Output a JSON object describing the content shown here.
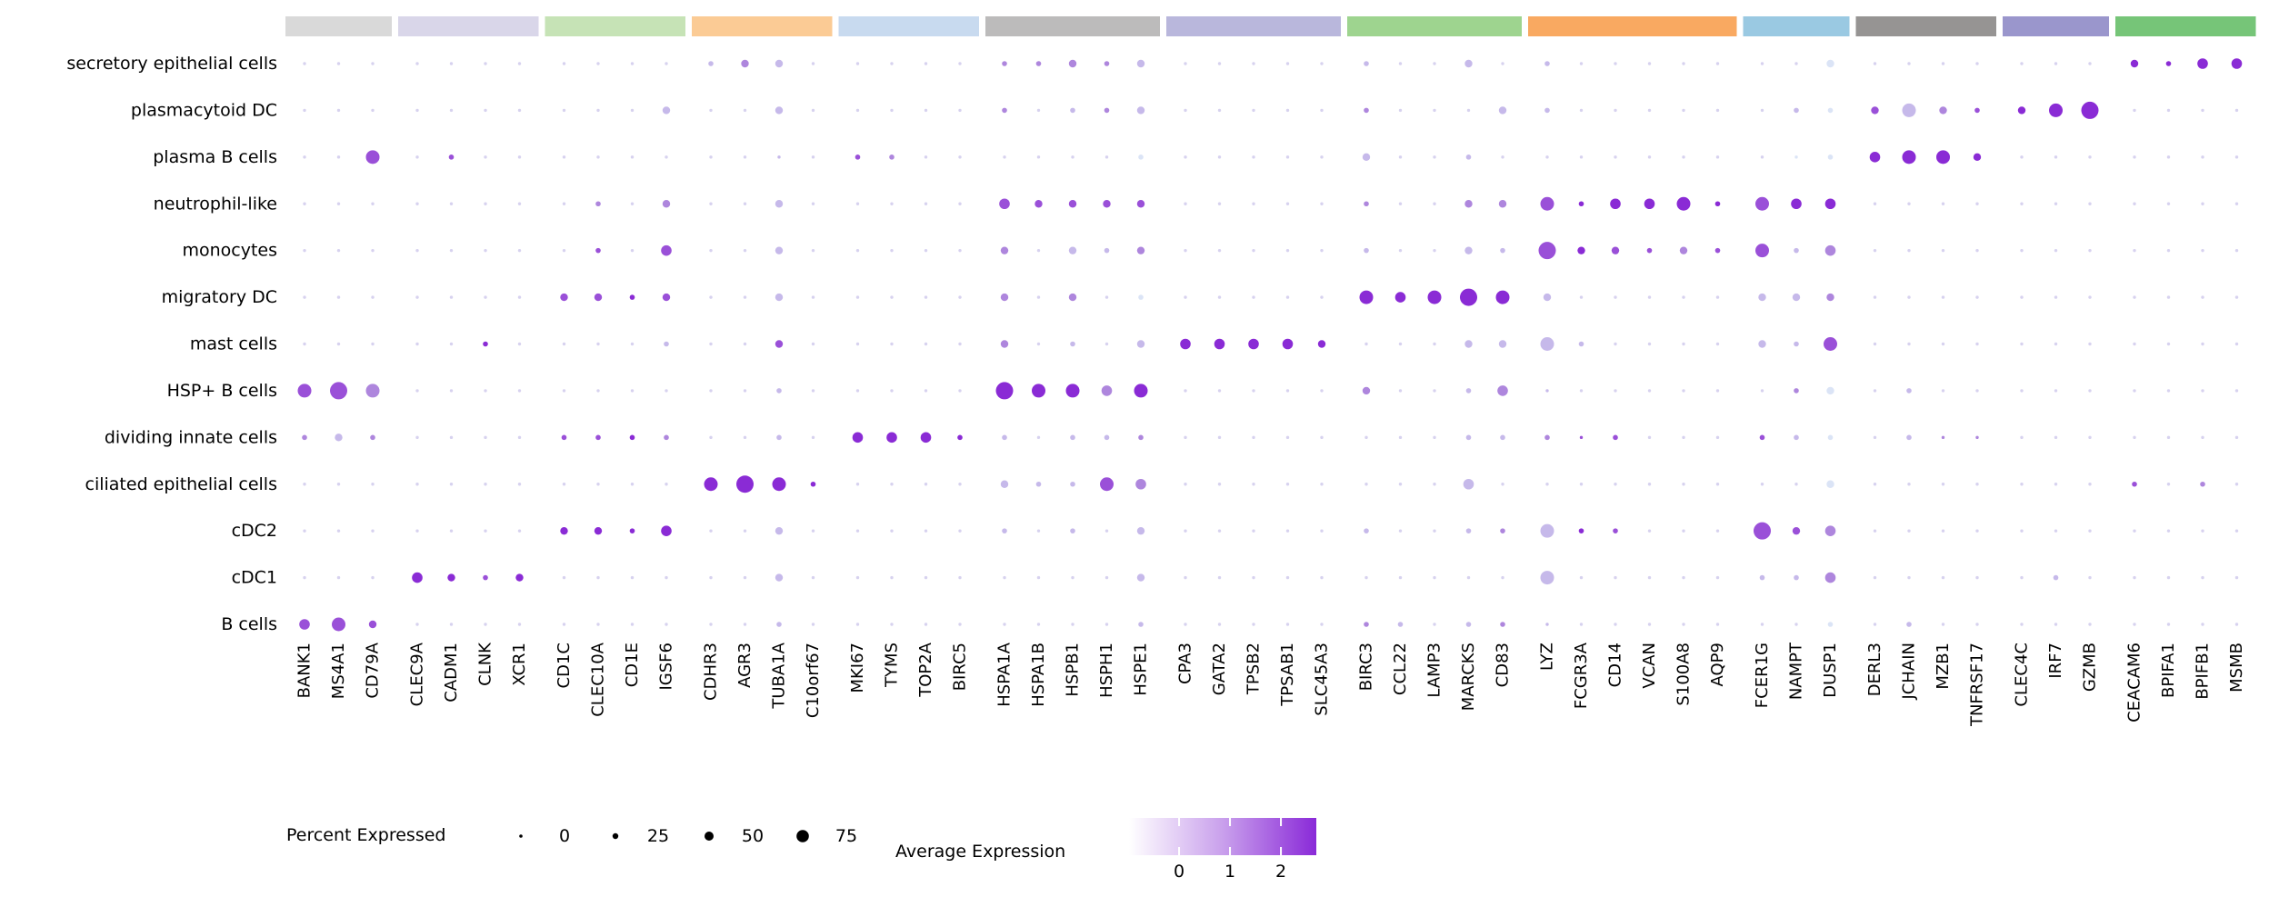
{
  "figure": {
    "background": "#ffffff",
    "text_color": "#000000"
  },
  "legend": {
    "size": {
      "title": "Percent Expressed",
      "items": [
        {
          "label": "0",
          "radius": 1.8
        },
        {
          "label": "25",
          "radius": 3.2
        },
        {
          "label": "50",
          "radius": 5.0
        },
        {
          "label": "75",
          "radius": 6.8
        }
      ],
      "dot_color": "#000000"
    },
    "color": {
      "title": "Average Expression",
      "ticks": [
        "0",
        "1",
        "2"
      ],
      "gradient": [
        "#ffffff",
        "#c9a0ec",
        "#8a2ad8"
      ]
    }
  },
  "chart_data": {
    "type": "scatter",
    "variant": "dotplot",
    "title": "",
    "xlabel": "",
    "ylabel": "",
    "genes": [
      "BANK1",
      "MS4A1",
      "CD79A",
      "CLEC9A",
      "CADM1",
      "CLNK",
      "XCR1",
      "CD1C",
      "CLEC10A",
      "CD1E",
      "IGSF6",
      "CDHR3",
      "AGR3",
      "TUBA1A",
      "C10orf67",
      "MKI67",
      "TYMS",
      "TOP2A",
      "BIRC5",
      "HSPA1A",
      "HSPA1B",
      "HSPB1",
      "HSPH1",
      "HSPE1",
      "CPA3",
      "GATA2",
      "TPSB2",
      "TPSAB1",
      "SLC45A3",
      "BIRC3",
      "CCL22",
      "LAMP3",
      "MARCKS",
      "CD83",
      "LYZ",
      "FCGR3A",
      "CD14",
      "VCAN",
      "S100A8",
      "AQP9",
      "FCER1G",
      "NAMPT",
      "DUSP1",
      "DERL3",
      "JCHAIN",
      "MZB1",
      "TNFRSF17",
      "CLEC4C",
      "IRF7",
      "GZMB",
      "CEACAM6",
      "BPIFA1",
      "BPIFB1",
      "MSMB"
    ],
    "gene_groups": [
      {
        "count": 3,
        "color": "#d9d9d9"
      },
      {
        "count": 4,
        "color": "#d9d6e9"
      },
      {
        "count": 4,
        "color": "#c6e3b6"
      },
      {
        "count": 4,
        "color": "#fbcb95"
      },
      {
        "count": 4,
        "color": "#c8daef"
      },
      {
        "count": 5,
        "color": "#bcbbbb"
      },
      {
        "count": 5,
        "color": "#b9b7dc"
      },
      {
        "count": 5,
        "color": "#9ed48f"
      },
      {
        "count": 6,
        "color": "#f9a961"
      },
      {
        "count": 3,
        "color": "#9ac9e2"
      },
      {
        "count": 4,
        "color": "#969493"
      },
      {
        "count": 3,
        "color": "#9a96cc"
      },
      {
        "count": 4,
        "color": "#76c578"
      }
    ],
    "cell_types": [
      "secretory epithelial cells",
      "plasmacytoid DC",
      "plasma B cells",
      "neutrophil-like",
      "monocytes",
      "migratory DC",
      "mast cells",
      "HSP+ B cells",
      "dividing innate cells",
      "ciliated epithelial cells",
      "cDC2",
      "cDC1",
      "B cells"
    ],
    "size_levels_radius_px": [
      1.7,
      2.8,
      4.2,
      5.8,
      7.5,
      9.5
    ],
    "size_levels_percent_expressed": [
      3,
      12,
      30,
      55,
      78,
      95
    ],
    "color_levels_hex": [
      "#d7d2ef",
      "#c6b9ea",
      "#ae86dd",
      "#9a50d8",
      "#8a2bd5",
      "#dbe4f6"
    ],
    "color_levels_avg_expression": [
      0.05,
      0.4,
      0.9,
      1.5,
      2.2,
      -0.3
    ],
    "default_dot": "00",
    "rows": [
      {
        "cell_type": "secretory epithelial cells",
        "dots": {
          "11": "11",
          "12": "22",
          "13": "21",
          "19": "12",
          "20": "12",
          "21": "22",
          "22": "12",
          "23": "21",
          "29": "11",
          "32": "21",
          "34": "11",
          "42": "25",
          "50": "24",
          "51": "14",
          "52": "34",
          "53": "34"
        }
      },
      {
        "cell_type": "plasmacytoid DC",
        "dots": {
          "10": "21",
          "13": "21",
          "19": "12",
          "21": "11",
          "22": "12",
          "23": "21",
          "29": "12",
          "33": "21",
          "34": "11",
          "41": "11",
          "42": "15",
          "43": "23",
          "44": "41",
          "45": "22",
          "46": "13",
          "47": "24",
          "48": "44",
          "49": "54"
        }
      },
      {
        "cell_type": "plasma B cells",
        "dots": {
          "2": "43",
          "4": "13",
          "13": "01",
          "15": "13",
          "16": "12",
          "23": "15",
          "29": "21",
          "32": "11",
          "41": "05",
          "42": "15",
          "43": "34",
          "44": "44",
          "45": "44",
          "46": "24"
        }
      },
      {
        "cell_type": "neutrophil-like",
        "dots": {
          "8": "12",
          "10": "22",
          "13": "21",
          "19": "33",
          "20": "23",
          "21": "23",
          "22": "23",
          "23": "23",
          "29": "12",
          "32": "22",
          "33": "22",
          "34": "43",
          "35": "14",
          "36": "34",
          "37": "34",
          "38": "44",
          "39": "14",
          "40": "43",
          "41": "34",
          "42": "34"
        }
      },
      {
        "cell_type": "monocytes",
        "dots": {
          "8": "13",
          "10": "33",
          "13": "21",
          "19": "22",
          "21": "21",
          "22": "11",
          "23": "22",
          "29": "11",
          "32": "21",
          "33": "11",
          "34": "53",
          "35": "24",
          "36": "23",
          "37": "13",
          "38": "22",
          "39": "13",
          "40": "43",
          "41": "11",
          "42": "32"
        }
      },
      {
        "cell_type": "migratory DC",
        "dots": {
          "7": "23",
          "8": "23",
          "9": "14",
          "10": "23",
          "13": "21",
          "19": "22",
          "21": "22",
          "23": "15",
          "29": "44",
          "30": "34",
          "31": "44",
          "32": "54",
          "33": "44",
          "34": "21",
          "40": "21",
          "41": "21",
          "42": "22"
        }
      },
      {
        "cell_type": "mast cells",
        "dots": {
          "5": "14",
          "10": "11",
          "13": "23",
          "19": "22",
          "21": "11",
          "23": "21",
          "24": "34",
          "25": "34",
          "26": "34",
          "27": "34",
          "28": "24",
          "32": "21",
          "33": "21",
          "34": "41",
          "35": "11",
          "40": "21",
          "41": "11",
          "42": "43"
        }
      },
      {
        "cell_type": "HSP+ B cells",
        "dots": {
          "0": "43",
          "1": "53",
          "2": "42",
          "13": "11",
          "19": "54",
          "20": "44",
          "21": "44",
          "22": "32",
          "23": "44",
          "29": "22",
          "32": "11",
          "33": "32",
          "34": "01",
          "41": "12",
          "42": "25",
          "44": "11"
        }
      },
      {
        "cell_type": "dividing innate cells",
        "dots": {
          "0": "12",
          "1": "21",
          "2": "12",
          "7": "13",
          "8": "13",
          "9": "14",
          "10": "12",
          "13": "11",
          "15": "34",
          "16": "34",
          "17": "34",
          "18": "14",
          "19": "11",
          "21": "11",
          "22": "11",
          "23": "12",
          "32": "11",
          "33": "11",
          "34": "12",
          "35": "03",
          "36": "13",
          "40": "13",
          "41": "11",
          "42": "15",
          "44": "11",
          "45": "02",
          "46": "02"
        }
      },
      {
        "cell_type": "ciliated epithelial cells",
        "dots": {
          "11": "44",
          "12": "54",
          "13": "44",
          "14": "14",
          "19": "21",
          "20": "11",
          "21": "11",
          "22": "43",
          "23": "32",
          "32": "31",
          "42": "25",
          "50": "13",
          "52": "12"
        }
      },
      {
        "cell_type": "cDC2",
        "dots": {
          "7": "24",
          "8": "24",
          "9": "14",
          "10": "34",
          "13": "21",
          "19": "11",
          "21": "11",
          "23": "21",
          "29": "11",
          "32": "11",
          "33": "12",
          "34": "41",
          "35": "14",
          "36": "13",
          "40": "53",
          "41": "23",
          "42": "32"
        }
      },
      {
        "cell_type": "cDC1",
        "dots": {
          "3": "34",
          "4": "24",
          "5": "13",
          "6": "24",
          "13": "21",
          "23": "21",
          "34": "41",
          "40": "11",
          "41": "11",
          "42": "32",
          "48": "11"
        }
      },
      {
        "cell_type": "B cells",
        "dots": {
          "0": "33",
          "1": "43",
          "2": "23",
          "13": "11",
          "23": "11",
          "29": "12",
          "30": "11",
          "32": "11",
          "33": "12",
          "34": "01",
          "42": "15",
          "44": "11"
        }
      }
    ]
  }
}
